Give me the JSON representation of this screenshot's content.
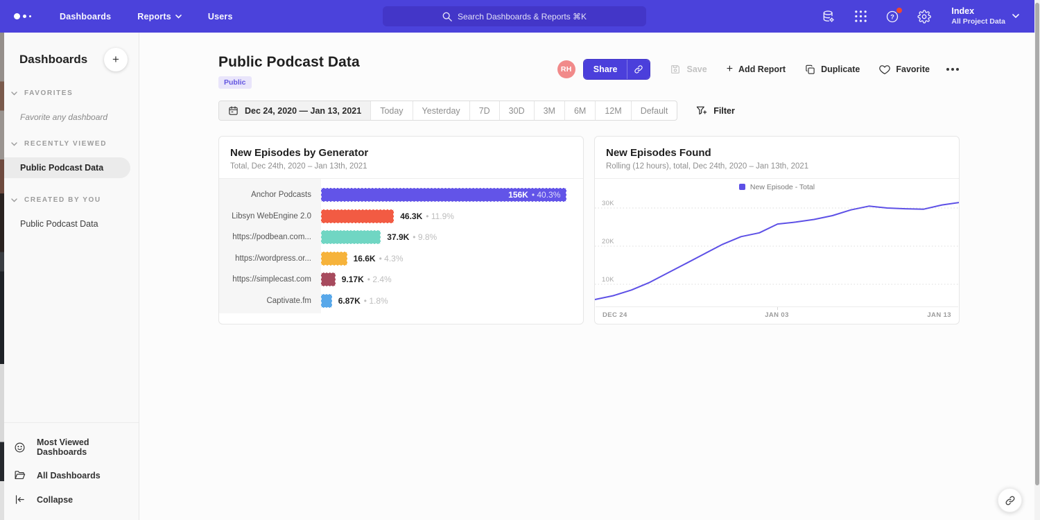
{
  "nav": {
    "items": [
      {
        "label": "Dashboards"
      },
      {
        "label": "Reports",
        "has_dropdown": true
      },
      {
        "label": "Users"
      }
    ],
    "search_placeholder": "Search Dashboards & Reports ⌘K",
    "icons": [
      "data-sources-icon",
      "apps-grid-icon",
      "help-icon",
      "settings-icon"
    ],
    "help_notification_dot": true,
    "project": {
      "name": "Index",
      "scope": "All Project Data"
    }
  },
  "sidebar": {
    "title": "Dashboards",
    "add_button": "+",
    "sections": [
      {
        "title": "FAVORITES",
        "empty_note": "Favorite any dashboard"
      },
      {
        "title": "RECENTLY VIEWED",
        "items": [
          {
            "label": "Public Podcast Data",
            "active": true
          }
        ]
      },
      {
        "title": "CREATED BY YOU",
        "items": [
          {
            "label": "Public Podcast Data",
            "active": false
          }
        ]
      }
    ],
    "footer": [
      {
        "label": "Most Viewed Dashboards",
        "icon": "smiley-icon"
      },
      {
        "label": "All Dashboards",
        "icon": "folder-icon"
      },
      {
        "label": "Collapse",
        "icon": "collapse-icon"
      }
    ]
  },
  "page": {
    "title": "Public Podcast Data",
    "badge": "Public",
    "avatar_initials": "RH",
    "actions": {
      "share": "Share",
      "save": "Save",
      "add_report": "Add Report",
      "add_report_prefix": "+",
      "duplicate": "Duplicate",
      "favorite": "Favorite"
    }
  },
  "toolbar": {
    "date_range": "Dec 24, 2020 — Jan 13, 2021",
    "presets": [
      "Today",
      "Yesterday",
      "7D",
      "30D",
      "3M",
      "6M",
      "12M",
      "Default"
    ],
    "filter": "Filter"
  },
  "theme": {
    "nav_bg": "#4B42DB",
    "search_bg": "#4336C8",
    "accent": "#4B3FDB",
    "badge_bg": "#E9E5FB",
    "badge_text": "#6356E0",
    "avatar_bg": "#F18A8A",
    "line_color": "#5D50E6"
  },
  "chart_data": [
    {
      "type": "bar",
      "orientation": "horizontal",
      "title": "New Episodes by Generator",
      "subtitle": "Total, Dec 24th, 2020 – Jan 13th, 2021",
      "categories": [
        "Anchor Podcasts",
        "Libsyn WebEngine 2.0",
        "https://podbean.com...",
        "https://wordpress.or...",
        "https://simplecast.com",
        "Captivate.fm"
      ],
      "values": [
        156000,
        46300,
        37900,
        16600,
        9170,
        6870
      ],
      "value_labels": [
        "156K",
        "46.3K",
        "37.9K",
        "16.6K",
        "9.17K",
        "6.87K"
      ],
      "percent_labels": [
        "40.3%",
        "11.9%",
        "9.8%",
        "4.3%",
        "2.4%",
        "1.8%"
      ],
      "separator": "•",
      "colors": [
        "#6254E8",
        "#F25B43",
        "#70D6C3",
        "#F6B33B",
        "#A74B5E",
        "#58A8EA"
      ],
      "xlim": [
        0,
        158000
      ]
    },
    {
      "type": "line",
      "title": "New Episodes Found",
      "subtitle": "Rolling (12 hours), total, Dec 24th, 2020 – Jan 13th, 2021",
      "legend": [
        {
          "label": "New Episode - Total",
          "color": "#5D50E6"
        }
      ],
      "x_tick_labels": [
        "DEC 24",
        "JAN 03",
        "JAN 13"
      ],
      "y_tick_labels": [
        "30K",
        "20K",
        "10K"
      ],
      "y_grid_values": [
        30000,
        20000,
        10000
      ],
      "x": [
        "Dec 24",
        "Dec 25",
        "Dec 26",
        "Dec 27",
        "Dec 28",
        "Dec 29",
        "Dec 30",
        "Dec 31",
        "Jan 01",
        "Jan 02",
        "Jan 03",
        "Jan 04",
        "Jan 05",
        "Jan 06",
        "Jan 07",
        "Jan 08",
        "Jan 09",
        "Jan 10",
        "Jan 11",
        "Jan 12",
        "Jan 13"
      ],
      "values": [
        6000,
        7000,
        8500,
        10500,
        13000,
        15500,
        18000,
        20500,
        22500,
        23500,
        25800,
        26300,
        27000,
        28000,
        29500,
        30500,
        30000,
        29800,
        29700,
        30800,
        31500
      ],
      "ylim": [
        0,
        34000
      ],
      "grid": "dotted-horizontal",
      "legend_position": "top-center"
    }
  ],
  "floating_action": {
    "icon": "link-icon"
  }
}
